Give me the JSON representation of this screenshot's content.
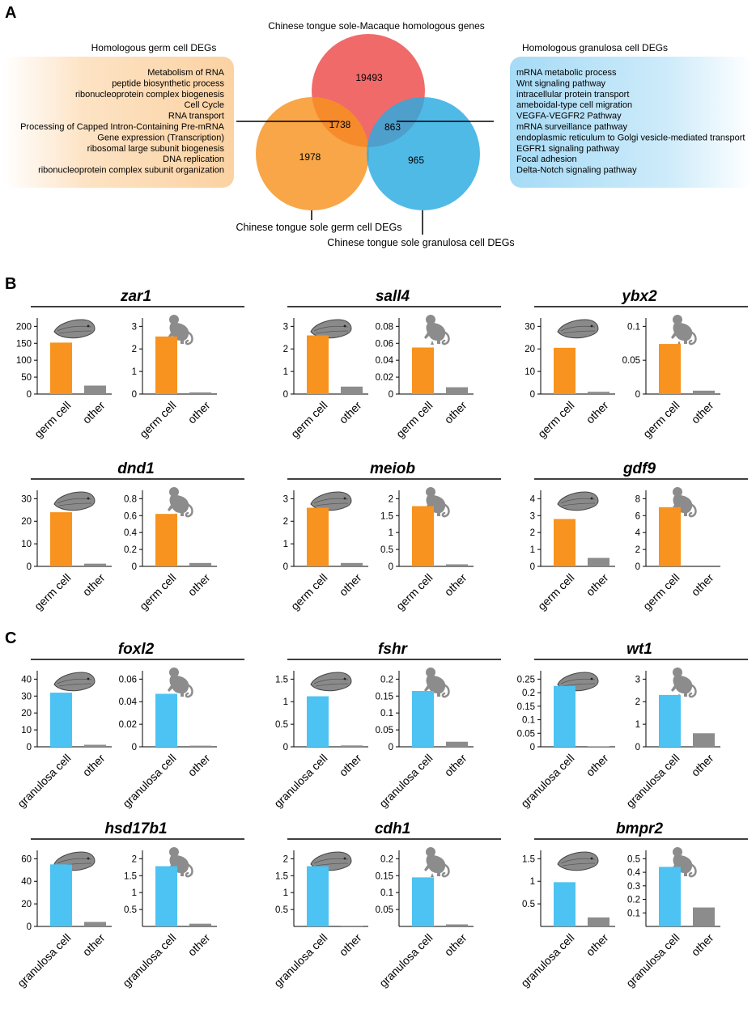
{
  "panel_labels": {
    "a": "A",
    "b": "B",
    "c": "C"
  },
  "venn": {
    "title": "Chinese tongue sole-Macaque homologous genes",
    "left_box_title": "Homologous  germ cell DEGs",
    "right_box_title": "Homologous  granulosa cell DEGs",
    "germ_label": "Chinese tongue sole  germ cell DEGs",
    "granulosa_label": "Chinese tongue sole  granulosa cell DEGs",
    "counts": {
      "homolog_only": "19493",
      "homolog_germ": "1738",
      "homolog_granulosa": "863",
      "germ_only": "1978",
      "granulosa_only": "965"
    },
    "left_terms": [
      "Metabolism of RNA",
      "peptide biosynthetic process",
      "ribonucleoprotein complex biogenesis",
      "Cell Cycle",
      "RNA transport",
      "Processing of Capped Intron-Containing Pre-mRNA",
      "Gene expression (Transcription)",
      "ribosomal large subunit biogenesis",
      "DNA replication",
      "ribonucleoprotein complex subunit organization"
    ],
    "right_terms": [
      "mRNA metabolic process",
      "Wnt signaling pathway",
      "intracellular protein transport",
      "ameboidal-type cell migration",
      "VEGFA-VEGFR2 Pathway",
      "mRNA surveillance pathway",
      "endoplasmic reticulum to Golgi vesicle-mediated transport",
      "EGFR1 signaling pathway",
      "Focal adhesion",
      "Delta-Notch signaling pathway"
    ],
    "colors": {
      "homolog": "#f05a5a",
      "germ": "#f7931e",
      "granulosa": "#29abe2",
      "left_box": "#fbd3a5",
      "right_box": "#a8dcf6"
    }
  },
  "icons": {
    "fish": "tongue-sole-fish-icon",
    "macaque": "macaque-icon"
  },
  "chart_data": [
    {
      "type": "bar",
      "panel": "B",
      "gene": "zar1",
      "species": "Chinese tongue sole",
      "categories": [
        "germ cell",
        "other"
      ],
      "values": [
        152,
        25
      ],
      "ylim": [
        0,
        220
      ],
      "ticks": [
        "0",
        "50",
        "100",
        "150",
        "200"
      ],
      "tick_values": [
        0,
        50,
        100,
        150,
        200
      ]
    },
    {
      "type": "bar",
      "panel": "B",
      "gene": "zar1",
      "species": "Macaque",
      "categories": [
        "germ cell",
        "other"
      ],
      "values": [
        2.55,
        0.07
      ],
      "ylim": [
        0,
        3.3
      ],
      "ticks": [
        "0",
        "1",
        "2",
        "3"
      ],
      "tick_values": [
        0,
        1,
        2,
        3
      ]
    },
    {
      "type": "bar",
      "panel": "B",
      "gene": "sall4",
      "species": "Chinese tongue sole",
      "categories": [
        "germ cell",
        "other"
      ],
      "values": [
        2.6,
        0.33
      ],
      "ylim": [
        0,
        3.3
      ],
      "ticks": [
        "0",
        "1",
        "2",
        "3"
      ],
      "tick_values": [
        0,
        1,
        2,
        3
      ]
    },
    {
      "type": "bar",
      "panel": "B",
      "gene": "sall4",
      "species": "Macaque",
      "categories": [
        "germ cell",
        "other"
      ],
      "values": [
        0.055,
        0.008
      ],
      "ylim": [
        0,
        0.088
      ],
      "ticks": [
        "0",
        "0.02",
        "0.04",
        "0.06",
        "0.08"
      ],
      "tick_values": [
        0,
        0.02,
        0.04,
        0.06,
        0.08
      ]
    },
    {
      "type": "bar",
      "panel": "B",
      "gene": "ybx2",
      "species": "Chinese tongue sole",
      "categories": [
        "germ cell",
        "other"
      ],
      "values": [
        20.5,
        1
      ],
      "ylim": [
        0,
        33
      ],
      "ticks": [
        "0",
        "10",
        "20",
        "30"
      ],
      "tick_values": [
        0,
        10,
        20,
        30
      ]
    },
    {
      "type": "bar",
      "panel": "B",
      "gene": "ybx2",
      "species": "Macaque",
      "categories": [
        "germ cell",
        "other"
      ],
      "values": [
        0.074,
        0.005
      ],
      "ylim": [
        0,
        0.11
      ],
      "ticks": [
        "0",
        "0.05",
        "0.1"
      ],
      "tick_values": [
        0,
        0.05,
        0.1
      ]
    },
    {
      "type": "bar",
      "panel": "B",
      "gene": "dnd1",
      "species": "Chinese tongue sole",
      "categories": [
        "germ cell",
        "other"
      ],
      "values": [
        24,
        1.2
      ],
      "ylim": [
        0,
        33
      ],
      "ticks": [
        "0",
        "10",
        "20",
        "30"
      ],
      "tick_values": [
        0,
        10,
        20,
        30
      ]
    },
    {
      "type": "bar",
      "panel": "B",
      "gene": "dnd1",
      "species": "Macaque",
      "categories": [
        "germ cell",
        "other"
      ],
      "values": [
        0.62,
        0.04
      ],
      "ylim": [
        0,
        0.88
      ],
      "ticks": [
        "0",
        "0.2",
        "0.4",
        "0.6",
        "0.8"
      ],
      "tick_values": [
        0,
        0.2,
        0.4,
        0.6,
        0.8
      ]
    },
    {
      "type": "bar",
      "panel": "B",
      "gene": "meiob",
      "species": "Chinese tongue sole",
      "categories": [
        "germ cell",
        "other"
      ],
      "values": [
        2.6,
        0.15
      ],
      "ylim": [
        0,
        3.3
      ],
      "ticks": [
        "0",
        "1",
        "2",
        "3"
      ],
      "tick_values": [
        0,
        1,
        2,
        3
      ]
    },
    {
      "type": "bar",
      "panel": "B",
      "gene": "meiob",
      "species": "Macaque",
      "categories": [
        "germ cell",
        "other"
      ],
      "values": [
        1.78,
        0.06
      ],
      "ylim": [
        0,
        2.2
      ],
      "ticks": [
        "0",
        "0.5",
        "1",
        "1.5",
        "2"
      ],
      "tick_values": [
        0,
        0.5,
        1,
        1.5,
        2
      ]
    },
    {
      "type": "bar",
      "panel": "B",
      "gene": "gdf9",
      "species": "Chinese tongue sole",
      "categories": [
        "germ cell",
        "other"
      ],
      "values": [
        2.8,
        0.5
      ],
      "ylim": [
        0,
        4.4
      ],
      "ticks": [
        "0",
        "1",
        "2",
        "3",
        "4"
      ],
      "tick_values": [
        0,
        1,
        2,
        3,
        4
      ]
    },
    {
      "type": "bar",
      "panel": "B",
      "gene": "gdf9",
      "species": "Macaque",
      "categories": [
        "germ cell",
        "other"
      ],
      "values": [
        7,
        0
      ],
      "ylim": [
        0,
        8.8
      ],
      "ticks": [
        "0",
        "2",
        "4",
        "6",
        "8"
      ],
      "tick_values": [
        0,
        2,
        4,
        6,
        8
      ]
    },
    {
      "type": "bar",
      "panel": "C",
      "gene": "foxl2",
      "species": "Chinese tongue sole",
      "categories": [
        "granulosa cell",
        "other"
      ],
      "values": [
        32,
        1.2
      ],
      "ylim": [
        0,
        44
      ],
      "ticks": [
        "0",
        "10",
        "20",
        "30",
        "40"
      ],
      "tick_values": [
        0,
        10,
        20,
        30,
        40
      ]
    },
    {
      "type": "bar",
      "panel": "C",
      "gene": "foxl2",
      "species": "Macaque",
      "categories": [
        "granulosa cell",
        "other"
      ],
      "values": [
        0.047,
        0.001
      ],
      "ylim": [
        0,
        0.066
      ],
      "ticks": [
        "0",
        "0.02",
        "0.04",
        "0.06"
      ],
      "tick_values": [
        0,
        0.02,
        0.04,
        0.06
      ]
    },
    {
      "type": "bar",
      "panel": "C",
      "gene": "fshr",
      "species": "Chinese tongue sole",
      "categories": [
        "granulosa cell",
        "other"
      ],
      "values": [
        1.12,
        0.03
      ],
      "ylim": [
        0,
        1.65
      ],
      "ticks": [
        "0",
        "0.5",
        "1",
        "1.5"
      ],
      "tick_values": [
        0,
        0.5,
        1,
        1.5
      ]
    },
    {
      "type": "bar",
      "panel": "C",
      "gene": "fshr",
      "species": "Macaque",
      "categories": [
        "granulosa cell",
        "other"
      ],
      "values": [
        0.165,
        0.015
      ],
      "ylim": [
        0,
        0.22
      ],
      "ticks": [
        "0",
        "0.05",
        "0.1",
        "0.15",
        "0.2"
      ],
      "tick_values": [
        0,
        0.05,
        0.1,
        0.15,
        0.2
      ]
    },
    {
      "type": "bar",
      "panel": "C",
      "gene": "wt1",
      "species": "Chinese tongue sole",
      "categories": [
        "granulosa cell",
        "other"
      ],
      "values": [
        0.225,
        0.002
      ],
      "ylim": [
        0,
        0.275
      ],
      "ticks": [
        "0",
        "0.05",
        "0.1",
        "0.15",
        "0.2",
        "0.25"
      ],
      "tick_values": [
        0,
        0.05,
        0.1,
        0.15,
        0.2,
        0.25
      ]
    },
    {
      "type": "bar",
      "panel": "C",
      "gene": "wt1",
      "species": "Macaque",
      "categories": [
        "granulosa cell",
        "other"
      ],
      "values": [
        2.3,
        0.6
      ],
      "ylim": [
        0,
        3.3
      ],
      "ticks": [
        "0",
        "1",
        "2",
        "3"
      ],
      "tick_values": [
        0,
        1,
        2,
        3
      ]
    },
    {
      "type": "bar",
      "panel": "C",
      "gene": "hsd17b1",
      "species": "Chinese tongue sole",
      "categories": [
        "granulosa cell",
        "other"
      ],
      "values": [
        55,
        4
      ],
      "ylim": [
        0,
        66
      ],
      "ticks": [
        "0",
        "20",
        "40",
        "60"
      ],
      "tick_values": [
        0,
        20,
        40,
        60
      ]
    },
    {
      "type": "bar",
      "panel": "C",
      "gene": "hsd17b1",
      "species": "Macaque",
      "categories": [
        "granulosa cell",
        "other"
      ],
      "values": [
        1.78,
        0.08
      ],
      "ylim": [
        0,
        2.2
      ],
      "ticks": [
        "0.5",
        "1",
        "1.5",
        "2"
      ],
      "tick_values": [
        0.5,
        1,
        1.5,
        2
      ]
    },
    {
      "type": "bar",
      "panel": "C",
      "gene": "cdh1",
      "species": "Chinese tongue sole",
      "categories": [
        "granulosa cell",
        "other"
      ],
      "values": [
        1.78,
        0.02
      ],
      "ylim": [
        0,
        2.2
      ],
      "ticks": [
        "0.5",
        "1",
        "1.5",
        "2"
      ],
      "tick_values": [
        0.5,
        1,
        1.5,
        2
      ]
    },
    {
      "type": "bar",
      "panel": "C",
      "gene": "cdh1",
      "species": "Macaque",
      "categories": [
        "granulosa cell",
        "other"
      ],
      "values": [
        0.145,
        0.006
      ],
      "ylim": [
        0,
        0.22
      ],
      "ticks": [
        "0.05",
        "0.1",
        "0.15",
        "0.2"
      ],
      "tick_values": [
        0.05,
        0.1,
        0.15,
        0.2
      ]
    },
    {
      "type": "bar",
      "panel": "C",
      "gene": "bmpr2",
      "species": "Chinese tongue sole",
      "categories": [
        "granulosa cell",
        "other"
      ],
      "values": [
        0.98,
        0.2
      ],
      "ylim": [
        0,
        1.65
      ],
      "ticks": [
        "0.5",
        "1",
        "1.5"
      ],
      "tick_values": [
        0.5,
        1,
        1.5
      ]
    },
    {
      "type": "bar",
      "panel": "C",
      "gene": "bmpr2",
      "species": "Macaque",
      "categories": [
        "granulosa cell",
        "other"
      ],
      "values": [
        0.44,
        0.14
      ],
      "ylim": [
        0,
        0.55
      ],
      "ticks": [
        "0.1",
        "0.2",
        "0.3",
        "0.4",
        "0.5"
      ],
      "tick_values": [
        0.1,
        0.2,
        0.3,
        0.4,
        0.5
      ]
    }
  ],
  "bar_colors": {
    "germ": "#f7931e",
    "granulosa": "#4cc3f2",
    "other": "#8c8c8c"
  }
}
